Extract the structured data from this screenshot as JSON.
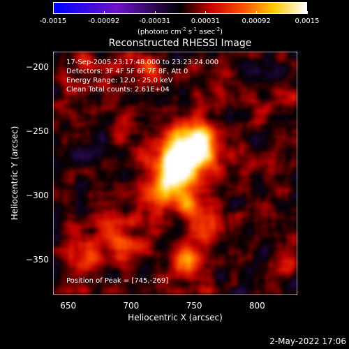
{
  "chart_data": {
    "type": "heatmap",
    "title": "Reconstructed RHESSI Image",
    "xlabel": "Heliocentric X (arcsec)",
    "ylabel": "Heliocentric Y (arcsec)",
    "xlim": [
      638,
      832
    ],
    "ylim": [
      -377,
      -188
    ],
    "x_ticks": [
      "650",
      "700",
      "750",
      "800"
    ],
    "y_ticks": [
      "-200",
      "-250",
      "-300",
      "-350"
    ],
    "colorbar": {
      "tick_labels": [
        "-0.0015",
        "-0.00092",
        "-0.00031",
        "0.00031",
        "0.00092",
        "0.0015"
      ],
      "range": [
        -0.0015,
        0.0015
      ],
      "units_prefix": "(photons cm",
      "units_exp1": "-2",
      "units_mid1": " s",
      "units_exp2": "-1",
      "units_mid2": " asec",
      "units_exp3": "-2",
      "units_suffix": ")"
    },
    "annotations": {
      "time_range": "17-Sep-2005 23:17:48.000 to 23:23:24.000",
      "detectors": "Detectors: 3F 4F 5F 6F 7F 8F, Att 0",
      "energy": "Energy Range: 12.0 - 25.0 keV",
      "method": "Clean    Total counts: 2.61E+04",
      "peak": "Position of Peak = [745,-269]"
    },
    "peak_position": [
      745,
      -269
    ],
    "peak_value": 0.0015,
    "colors": {
      "low": "#0000ff",
      "mid": "#000000",
      "high": "#ffffff"
    }
  },
  "footer": {
    "date": "2-May-2022 17:06"
  }
}
